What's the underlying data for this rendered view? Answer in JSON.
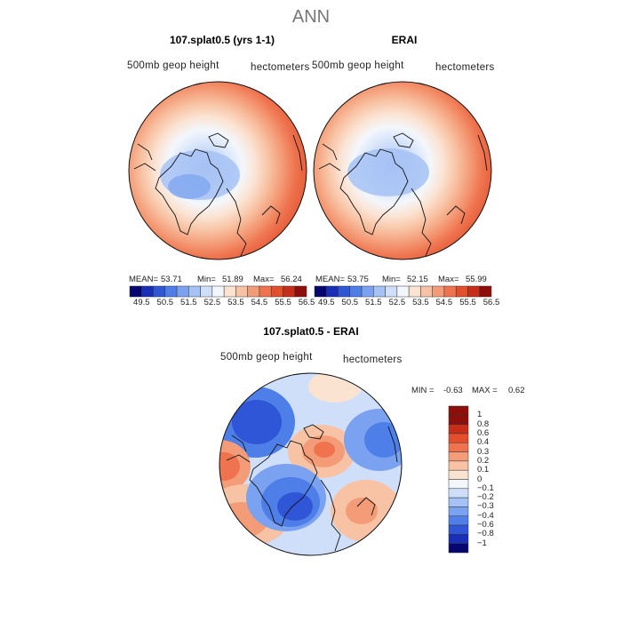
{
  "page": {
    "title": "ANN"
  },
  "chart_data": [
    {
      "type": "heatmap",
      "projection": "north polar stereographic",
      "title": "107.splat0.5 (yrs 1-1)",
      "field_label": "500mb geop height",
      "units": "hectometers",
      "stats": {
        "mean_label": "MEAN=",
        "mean": "53.71",
        "min_label": "Min=",
        "min": "51.89",
        "max_label": "Max=",
        "max": "56.24"
      },
      "levels": [
        "49.5",
        "50.5",
        "51.5",
        "52.5",
        "53.5",
        "54.5",
        "55.5",
        "56.5"
      ]
    },
    {
      "type": "heatmap",
      "projection": "north polar stereographic",
      "title": "ERAI",
      "field_label": "500mb geop height",
      "units": "hectometers",
      "stats": {
        "mean_label": "MEAN=",
        "mean": "53.75",
        "min_label": "Min=",
        "min": "52.15",
        "max_label": "Max=",
        "max": "55.99"
      },
      "levels": [
        "49.5",
        "50.5",
        "51.5",
        "52.5",
        "53.5",
        "54.5",
        "55.5",
        "56.5"
      ]
    },
    {
      "type": "heatmap",
      "projection": "north polar stereographic",
      "title": "107.splat0.5 - ERAI",
      "field_label": "500mb geop height",
      "units": "hectometers",
      "stats": {
        "min_label": "MIN =",
        "min": "-0.63",
        "max_label": "MAX =",
        "max": "0.62"
      },
      "levels": [
        "1",
        "0.8",
        "0.6",
        "0.4",
        "0.3",
        "0.2",
        "0.1",
        "0",
        "−0.1",
        "−0.2",
        "−0.3",
        "−0.4",
        "−0.6",
        "−0.8",
        "−1"
      ]
    }
  ],
  "colors": {
    "abs_scale": [
      "#06066f",
      "#1a2fb8",
      "#2f56d6",
      "#4e7ee8",
      "#7aa2f0",
      "#a6c2f5",
      "#cfdffa",
      "#f3f7fc",
      "#fbe3d2",
      "#f8c3a4",
      "#f49c77",
      "#ee734e",
      "#e24f2d",
      "#c72d18",
      "#8c0f0c"
    ],
    "diff_scale": [
      "#8c0f0c",
      "#c72d18",
      "#e24f2d",
      "#ee734e",
      "#f49c77",
      "#f8c3a4",
      "#fbe3d2",
      "#f3f7fc",
      "#cfdffa",
      "#a6c2f5",
      "#7aa2f0",
      "#4e7ee8",
      "#2f56d6",
      "#1a2fb8",
      "#06066f"
    ]
  }
}
